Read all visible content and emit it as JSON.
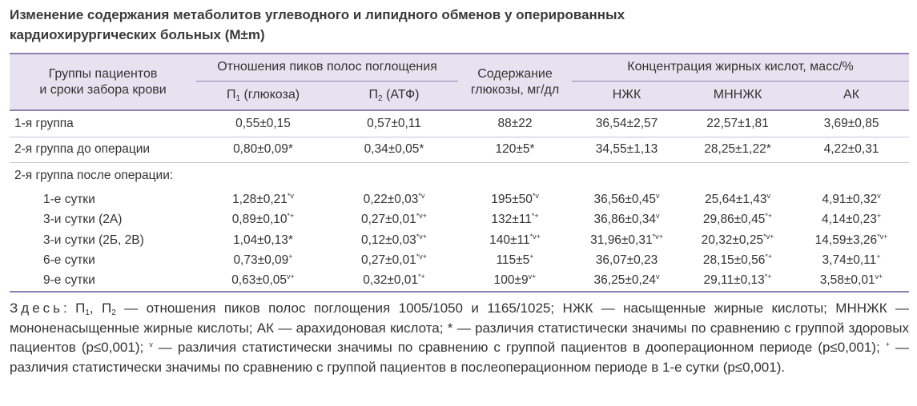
{
  "title": [
    "Изменение содержания метаболитов углеводного и липидного обменов у оперированных",
    "кардиохирургических больных (M±m)"
  ],
  "table": {
    "header": {
      "group": [
        "Группы пациентов",
        "и сроки забора крови"
      ],
      "ratios": "Отношения пиков полос поглощения",
      "p1": [
        "П",
        {
          "sub": "1"
        },
        " (глюкоза)"
      ],
      "p2": [
        "П",
        {
          "sub": "2"
        },
        " (АТФ)"
      ],
      "glucose": [
        "Содержание",
        "глюкозы, мг/дл"
      ],
      "acids": "Концентрация жирных кислот, масс/%",
      "nzhk": "НЖК",
      "mnnzhk": "МННЖК",
      "ak": "АК"
    },
    "body": [
      {
        "label": "1-я группа",
        "cells": [
          [
            "0,55±0,15"
          ],
          [
            "0,57±0,11"
          ],
          [
            "88±22"
          ],
          [
            "36,54±2,57"
          ],
          [
            "22,57±1,81"
          ],
          [
            "3,69±0,85"
          ]
        ]
      },
      {
        "label": "2-я группа до операции",
        "cells": [
          [
            "0,80±0,09*"
          ],
          [
            "0,34±0,05*"
          ],
          [
            "120±5*"
          ],
          [
            "34,55±1,13"
          ],
          [
            "28,25±1,22*"
          ],
          [
            "4,22±0,31"
          ]
        ]
      },
      {
        "label": "2-я группа после операции:",
        "rows": [
          {
            "label": "1-е сутки",
            "cells": [
              [
                "1,28±0,21",
                {
                  "sup": "*v"
                }
              ],
              [
                "0,22±0,03",
                {
                  "sup": "*v"
                }
              ],
              [
                "195±50",
                {
                  "sup": "*v"
                }
              ],
              [
                "36,56±0,45",
                {
                  "sup": "v"
                }
              ],
              [
                "25,64±1,43",
                {
                  "sup": "v"
                }
              ],
              [
                "4,91±0,32",
                {
                  "sup": "v"
                }
              ]
            ]
          },
          {
            "label": "3-и сутки (2А)",
            "cells": [
              [
                "0,89±0,10",
                {
                  "sup": "*+"
                }
              ],
              [
                "0,27±0,01",
                {
                  "sup": "*v+"
                }
              ],
              [
                "132±11",
                {
                  "sup": "*+"
                }
              ],
              [
                "36,86±0,34",
                {
                  "sup": "v"
                }
              ],
              [
                "29,86±0,45",
                {
                  "sup": "*+"
                }
              ],
              [
                "4,14±0,23",
                {
                  "sup": "+"
                }
              ]
            ]
          },
          {
            "label": "3-и сутки (2Б, 2В)",
            "cells": [
              [
                "1,04±0,13*"
              ],
              [
                "0,12±0,03",
                {
                  "sup": "*v+"
                }
              ],
              [
                "140±11",
                {
                  "sup": "*v+"
                }
              ],
              [
                "31,96±0,31",
                {
                  "sup": "*v+"
                }
              ],
              [
                "20,32±0,25",
                {
                  "sup": "*v+"
                }
              ],
              [
                "14,59±3,26",
                {
                  "sup": "*v+"
                }
              ]
            ]
          },
          {
            "label": "6-е сутки",
            "cells": [
              [
                "0,73±0,09",
                {
                  "sup": "+"
                }
              ],
              [
                "0,27±0,01",
                {
                  "sup": "*v+"
                }
              ],
              [
                "115±5",
                {
                  "sup": "+"
                }
              ],
              [
                "36,07±0,23"
              ],
              [
                "28,15±0,56",
                {
                  "sup": "*+"
                }
              ],
              [
                "3,74±0,11",
                {
                  "sup": "+"
                }
              ]
            ]
          },
          {
            "label": "9-е сутки",
            "cells": [
              [
                "0,63±0,05",
                {
                  "sup": "v+"
                }
              ],
              [
                "0,32±0,01",
                {
                  "sup": "*+"
                }
              ],
              [
                "100±9",
                {
                  "sup": "v+"
                }
              ],
              [
                "36,25±0,24",
                {
                  "sup": "v"
                }
              ],
              [
                "29,11±0,13",
                {
                  "sup": "*+"
                }
              ],
              [
                "3,58±0,01",
                {
                  "sup": "v+"
                }
              ]
            ]
          }
        ]
      }
    ]
  },
  "note_lead": "Здесь",
  "note": [
    ": П",
    {
      "sub": "1"
    },
    ", П",
    {
      "sub": "2"
    },
    " — отношения пиков полос поглощения 1005/1050 и 1165/1025; НЖК — насыщенные жирные кислоты; МННЖК — мононенасыщенные жирные кислоты; АК — арахидоновая кислота; * — различия статистически значимы по сравнению с группой здоровых пациентов (p≤0,001); ",
    {
      "sup": "v"
    },
    " — различия статистически значимы по сравнению с группой пациентов в дооперационном периоде (p≤0,001); ",
    {
      "sup": "+"
    },
    " — различия статистически значимы по сравнению с группой пациентов в послеоперационном периоде в 1-е сутки (p≤0,001)."
  ]
}
